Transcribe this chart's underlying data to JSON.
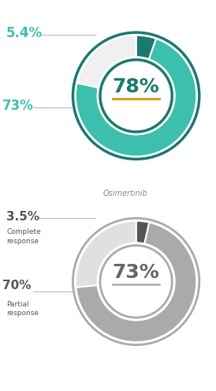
{
  "chart1": {
    "center_text": "78%",
    "center_line_color": "#d4a017",
    "slices": [
      5.4,
      73.0,
      21.6
    ],
    "slice_colors": [
      "#1a7a6e",
      "#3dbfad",
      "#f0f0f0"
    ],
    "center_text_color": "#1a7a6e",
    "outer_ring_color": "#1a7a6e",
    "label_54_text": "5.4%",
    "label_73_text": "73%",
    "label_color": "#3dbfad"
  },
  "chart2": {
    "center_text": "73%",
    "center_line_color": "#aaaaaa",
    "slices": [
      3.5,
      70.0,
      26.5
    ],
    "slice_colors": [
      "#555555",
      "#aaaaaa",
      "#e0e0e0"
    ],
    "center_text_color": "#666666",
    "outer_ring_color": "#aaaaaa",
    "label_35_text": "3.5%",
    "label_cr_text": "Complete\nresponse",
    "label_70_text": "70%",
    "label_pr_text": "Partial\nresponse",
    "label_color": "#555555",
    "subtitle": "Osimertinib"
  },
  "background_color": "#ffffff",
  "fig_width": 2.74,
  "fig_height": 4.95,
  "dpi": 100
}
